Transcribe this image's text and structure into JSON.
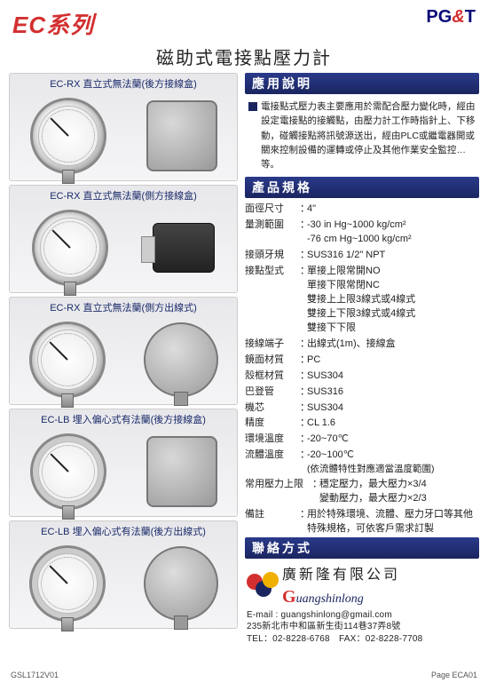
{
  "header": {
    "series": "EC系列",
    "logo_parts": {
      "p": "P",
      "g": "G",
      "amp": "&",
      "t": "T"
    }
  },
  "title": "磁助式電接點壓力計",
  "products": [
    {
      "label": "EC-RX 直立式無法蘭(後方接線盒)",
      "right_variant": "box"
    },
    {
      "label": "EC-RX 直立式無法蘭(側方接線盒)",
      "right_variant": "connector"
    },
    {
      "label": "EC-RX 直立式無法蘭(側方出線式)",
      "right_variant": "back"
    },
    {
      "label": "EC-LB 埋入偏心式有法蘭(後方接線盒)",
      "right_variant": "box",
      "flange": true
    },
    {
      "label": "EC-LB 埋入偏心式有法蘭(後方出線式)",
      "right_variant": "back",
      "flange": true
    }
  ],
  "sections": {
    "app_header": "應用說明",
    "app_text": "電接點式壓力表主要應用於需配合壓力變化時，經由設定電接點的接觸點，由壓力計工作時指針上、下移動，碰觸接點將訊號源送出，經由PLC或繼電器開或關來控制設備的運轉或停止及其他作業安全監控…等。",
    "spec_header": "產品規格",
    "contact_header": "聯絡方式"
  },
  "specs": [
    {
      "label": "面徑尺寸",
      "value": "4\""
    },
    {
      "label": "量測範圍",
      "value": "-30 in Hg~1000 kg/cm²",
      "value2": "-76 cm Hg~1000 kg/cm²"
    },
    {
      "label": "接頭牙規",
      "value": "SUS316  1/2\" NPT"
    },
    {
      "label": "接點型式",
      "value": "單接上限常開NO",
      "extra": [
        "單接下限常閉NC",
        "雙接上上限3線式或4線式",
        "雙接上下限3線式或4線式",
        "雙接下下限"
      ]
    },
    {
      "label": "接線端子",
      "value": "出線式(1m)、接線盒"
    },
    {
      "label": "鏡面材質",
      "value": "PC"
    },
    {
      "label": "殼框材質",
      "value": "SUS304"
    },
    {
      "label": "巴登管",
      "value": "SUS316"
    },
    {
      "label": "機芯",
      "value": "SUS304"
    },
    {
      "label": "精度",
      "value": "CL 1.6"
    },
    {
      "label": "環境溫度",
      "value": "-20~70℃"
    },
    {
      "label": "流體溫度",
      "value": "-20~100℃",
      "note": "(依流體特性對應適當溫度範圍)"
    },
    {
      "label": "常用壓力上限",
      "value": "穩定壓力，最大壓力×3/4",
      "value2b": "變動壓力，最大壓力×2/3",
      "wide": true
    },
    {
      "label": "備註",
      "value": "用於特殊環境、流體、壓力牙口等其他特殊規格，可依客戶需求訂製"
    }
  ],
  "contact": {
    "company_cn": "廣新隆有限公司",
    "company_en_g": "G",
    "company_en_rest": "uangshinlong",
    "email": "E-mail : guangshinlong@gmail.com",
    "address": "235新北市中和區新生街114巷37弄8號",
    "phone": "TEL：02-8228-6768　FAX：02-8228-7708"
  },
  "footer": {
    "left": "GSL1712V01",
    "right": "Page ECA01"
  }
}
